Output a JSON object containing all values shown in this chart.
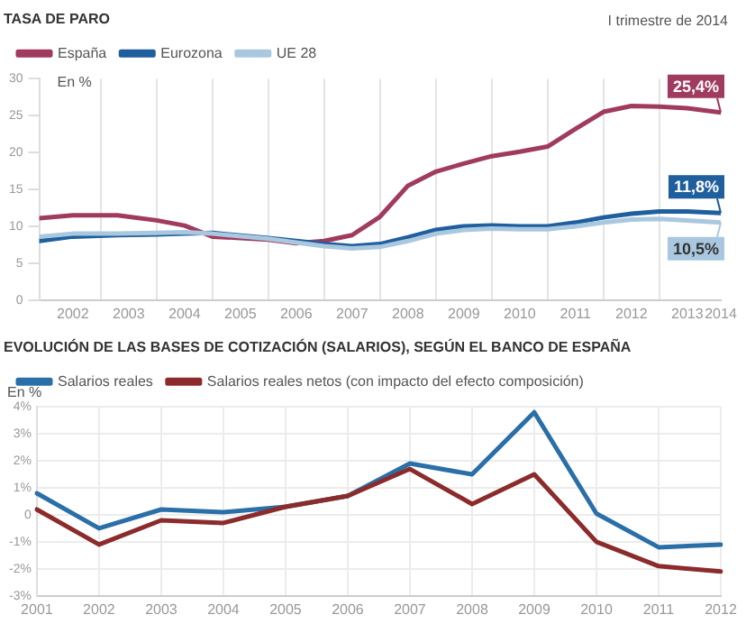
{
  "chart_data": [
    {
      "type": "line",
      "title": "TASA DE PARO",
      "legend": "top left",
      "grid": "x",
      "marker": "none",
      "line_style": "solid",
      "xlim": [
        2001.9,
        2014.1
      ],
      "xticks": [
        {
          "value": 2002.5,
          "label": "2002"
        },
        {
          "value": 2003,
          "label": null
        },
        {
          "value": 2003.5,
          "label": "2003"
        },
        {
          "value": 2004,
          "label": null
        },
        {
          "value": 2004.5,
          "label": "2004"
        },
        {
          "value": 2005,
          "label": null
        },
        {
          "value": 2005.5,
          "label": "2005"
        },
        {
          "value": 2006,
          "label": null
        },
        {
          "value": 2006.5,
          "label": "2006"
        },
        {
          "value": 2007,
          "label": null
        },
        {
          "value": 2007.5,
          "label": "2007"
        },
        {
          "value": 2008,
          "label": null
        },
        {
          "value": 2008.5,
          "label": "2008"
        },
        {
          "value": 2009,
          "label": null
        },
        {
          "value": 2009.5,
          "label": "2009"
        },
        {
          "value": 2010,
          "label": null
        },
        {
          "value": 2010.5,
          "label": "2010"
        },
        {
          "value": 2011,
          "label": null
        },
        {
          "value": 2011.5,
          "label": "2011"
        },
        {
          "value": 2012,
          "label": null
        },
        {
          "value": 2012.5,
          "label": "2012"
        },
        {
          "value": 2013,
          "label": null
        },
        {
          "value": 2013.5,
          "label": "2013"
        },
        {
          "value": 2014.1,
          "label": "2014"
        }
      ],
      "ylim": [
        0,
        30
      ],
      "yticks": [
        0,
        5,
        10,
        15,
        20,
        25,
        30
      ],
      "x": [
        2001.9,
        2002.5,
        2003.3,
        2004,
        2004.5,
        2005,
        2006,
        2006.5,
        2007,
        2007.5,
        2008,
        2008.5,
        2009,
        2009.5,
        2010,
        2010.5,
        2011,
        2011.5,
        2012,
        2012.5,
        2013,
        2013.5,
        2014.1
      ],
      "series": [
        {
          "name": "España",
          "color": "#a03a5e",
          "values": [
            11.1,
            11.5,
            11.5,
            10.8,
            10.1,
            8.6,
            8.2,
            7.7,
            8.0,
            8.8,
            11.3,
            15.5,
            17.4,
            18.5,
            19.5,
            20.1,
            20.8,
            23.2,
            25.5,
            26.3,
            26.2,
            26.0,
            25.4
          ],
          "value_labels": [
            null,
            null,
            null,
            null,
            null,
            null,
            null,
            null,
            null,
            null,
            null,
            null,
            null,
            null,
            null,
            null,
            null,
            null,
            null,
            null,
            null,
            null,
            "25,4%"
          ]
        },
        {
          "name": "Eurozona",
          "color": "#1f5f9e",
          "values": [
            8.0,
            8.6,
            8.8,
            8.9,
            9.0,
            9.1,
            8.4,
            8.0,
            7.6,
            7.3,
            7.6,
            8.5,
            9.5,
            10.0,
            10.1,
            10.0,
            10.0,
            10.5,
            11.2,
            11.7,
            12.0,
            12.0,
            11.8
          ],
          "value_labels": [
            null,
            null,
            null,
            null,
            null,
            null,
            null,
            null,
            null,
            null,
            null,
            null,
            null,
            null,
            null,
            null,
            null,
            null,
            null,
            null,
            null,
            null,
            "11,8%"
          ]
        },
        {
          "name": "UE 28",
          "color": "#a9c8e0",
          "values": [
            8.6,
            9.0,
            9.0,
            9.1,
            9.2,
            9.0,
            8.3,
            7.8,
            7.3,
            7.0,
            7.2,
            8.0,
            9.0,
            9.5,
            9.7,
            9.6,
            9.6,
            10.0,
            10.5,
            10.9,
            11.0,
            10.8,
            10.5
          ],
          "value_labels": [
            null,
            null,
            null,
            null,
            null,
            null,
            null,
            null,
            null,
            null,
            null,
            null,
            null,
            null,
            null,
            null,
            null,
            null,
            null,
            null,
            null,
            null,
            "10,5%"
          ]
        }
      ],
      "annotations": [
        "I trimestre de 2014",
        "En %"
      ]
    },
    {
      "type": "line",
      "title": "EVOLUCIÓN DE LAS BASES DE COTIZACIÓN (SALARIOS), SEGÚN EL BANCO DE ESPAÑA",
      "legend": "top left",
      "grid": true,
      "marker": "none",
      "line_style": "solid",
      "categories": [
        "2001",
        "2002",
        "2003",
        "2004",
        "2005",
        "2006",
        "2007",
        "2008",
        "2009",
        "2010",
        "2011",
        "2012"
      ],
      "ylim": [
        -3,
        4
      ],
      "yticks": [
        {
          "value": -3,
          "label": "-3%"
        },
        {
          "value": -2,
          "label": "-2%"
        },
        {
          "value": -1,
          "label": "-1%"
        },
        0,
        {
          "value": 1,
          "label": "1%"
        },
        {
          "value": 2,
          "label": "2%"
        },
        {
          "value": 3,
          "label": "3%"
        },
        {
          "value": 4,
          "label": "4%"
        }
      ],
      "series": [
        {
          "name": "Salarios reales",
          "color": "#2a6fa8",
          "values": [
            0.8,
            -0.5,
            0.2,
            0.1,
            0.3,
            0.7,
            1.9,
            1.5,
            3.8,
            0.05,
            -1.2,
            -1.1
          ]
        },
        {
          "name": "Salarios reales netos (con impacto del efecto composición)",
          "color": "#8b2b2b",
          "values": [
            0.2,
            -1.1,
            -0.2,
            -0.3,
            0.3,
            0.7,
            1.7,
            0.4,
            1.5,
            -1.0,
            -1.9,
            -2.1
          ]
        }
      ],
      "annotations": [
        "En %"
      ]
    }
  ]
}
